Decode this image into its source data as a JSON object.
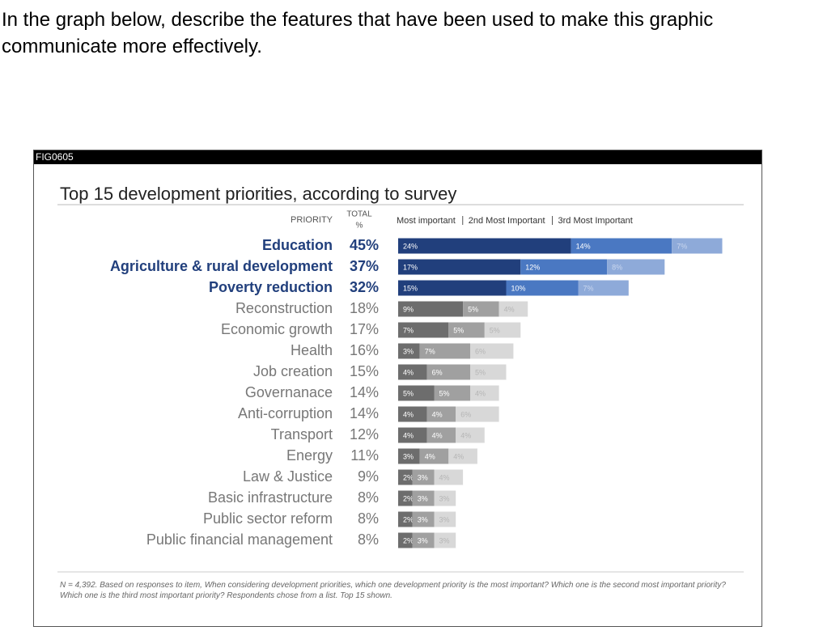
{
  "question": "In the graph below, describe the features that have been used to make this graphic communicate more effectively.",
  "figure_id": "FIG0605",
  "chart_data": {
    "type": "stacked-bar-horizontal",
    "title": "Top 15 development priorities, according to survey",
    "priority_header": "PRIORITY",
    "total_header": [
      "TOTAL",
      "%"
    ],
    "categories": [
      "Education",
      "Agriculture & rural development",
      "Poverty reduction",
      "Reconstruction",
      "Economic growth",
      "Health",
      "Job creation",
      "Governanace",
      "Anti-corruption",
      "Transport",
      "Energy",
      "Law & Justice",
      "Basic infrastructure",
      "Public sector reform",
      "Public financial management"
    ],
    "totals": [
      "45%",
      "37%",
      "32%",
      "18%",
      "17%",
      "16%",
      "15%",
      "14%",
      "14%",
      "12%",
      "11%",
      "9%",
      "8%",
      "8%",
      "8%"
    ],
    "highlight": [
      true,
      true,
      true,
      false,
      false,
      false,
      false,
      false,
      false,
      false,
      false,
      false,
      false,
      false,
      false
    ],
    "series": [
      {
        "name": "Most important",
        "color": "#213f7c",
        "muted_color": "#6d6d6d",
        "values": [
          24,
          17,
          15,
          9,
          7,
          3,
          4,
          5,
          4,
          4,
          3,
          2,
          2,
          2,
          2
        ],
        "value_labels": [
          "24%",
          "17%",
          "15%",
          "9%",
          "7%",
          "3%",
          "4%",
          "5%",
          "4%",
          "4%",
          "3%",
          "2%",
          "2%",
          "2%",
          "2%"
        ]
      },
      {
        "name": "2nd Most Important",
        "color": "#4a78c2",
        "muted_color": "#a0a0a0",
        "values": [
          14,
          12,
          10,
          5,
          5,
          7,
          6,
          5,
          4,
          4,
          4,
          3,
          3,
          3,
          3
        ],
        "value_labels": [
          "14%",
          "12%",
          "10%",
          "5%",
          "5%",
          "7%",
          "6%",
          "5%",
          "4%",
          "4%",
          "4%",
          "3%",
          "3%",
          "3%",
          "3%"
        ]
      },
      {
        "name": "3rd Most Important",
        "color": "#8eaad9",
        "muted_color": "#d8d8d8",
        "values": [
          7,
          8,
          7,
          4,
          5,
          6,
          5,
          4,
          6,
          4,
          4,
          4,
          3,
          3,
          3
        ],
        "value_labels": [
          "7%",
          "8%",
          "7%",
          "4%",
          "5%",
          "6%",
          "5%",
          "4%",
          "6%",
          "4%",
          "4%",
          "4%",
          "3%",
          "3%",
          "3%"
        ]
      }
    ],
    "footnote": "N = 4,392. Based on responses to item, When considering development priorities, which one development priority is the most important? Which one is the second most important priority? Which one is the third most important priority? Respondents chose from a list. Top 15 shown."
  }
}
